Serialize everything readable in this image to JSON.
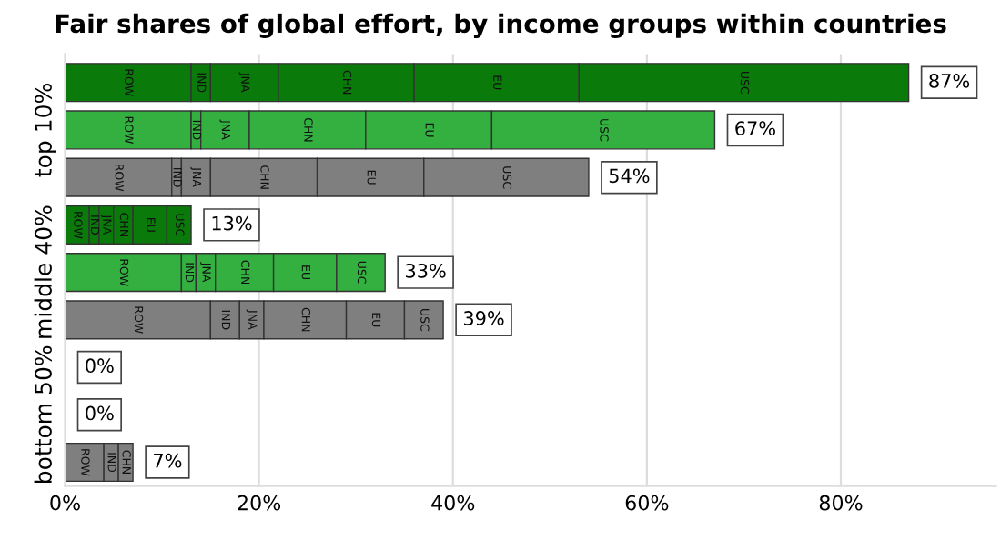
{
  "chart_data": {
    "type": "bar",
    "orientation": "horizontal",
    "stacked": true,
    "title": "Fair shares of global effort, by income groups within countries",
    "categories": [
      null,
      "top 10%",
      null,
      null,
      "middle 40%",
      null,
      null,
      "bottom 50%",
      null
    ],
    "series": [
      {
        "name": "ROW",
        "colors": [
          "#0a7a0a",
          "#33b040",
          "#7f7f7f",
          "#0a7a0a",
          "#33b040",
          "#7f7f7f",
          "#0a7a0a",
          "#33b040",
          "#7f7f7f"
        ],
        "values": [
          13,
          13,
          11,
          2.5,
          12,
          15,
          0,
          0,
          4
        ]
      },
      {
        "name": "IND",
        "colors": [
          "#0a7a0a",
          "#33b040",
          "#7f7f7f",
          "#0a7a0a",
          "#33b040",
          "#7f7f7f",
          "#0a7a0a",
          "#33b040",
          "#7f7f7f"
        ],
        "values": [
          2,
          1,
          1,
          1,
          1.5,
          3,
          0,
          0,
          1.5
        ]
      },
      {
        "name": "JNA",
        "colors": [
          "#0a7a0a",
          "#33b040",
          "#7f7f7f",
          "#0a7a0a",
          "#33b040",
          "#7f7f7f",
          "#0a7a0a",
          "#33b040",
          "#7f7f7f"
        ],
        "values": [
          7,
          5,
          3,
          1.5,
          2,
          2.5,
          0,
          0,
          0
        ]
      },
      {
        "name": "CHN",
        "colors": [
          "#0a7a0a",
          "#33b040",
          "#7f7f7f",
          "#0a7a0a",
          "#33b040",
          "#7f7f7f",
          "#0a7a0a",
          "#33b040",
          "#7f7f7f"
        ],
        "values": [
          14,
          12,
          11,
          2,
          6,
          8.5,
          0,
          0,
          1.5
        ]
      },
      {
        "name": "EU",
        "colors": [
          "#0a7a0a",
          "#33b040",
          "#7f7f7f",
          "#0a7a0a",
          "#33b040",
          "#7f7f7f",
          "#0a7a0a",
          "#33b040",
          "#7f7f7f"
        ],
        "values": [
          17,
          13,
          11,
          3.5,
          6.5,
          6,
          0,
          0,
          0
        ]
      },
      {
        "name": "USC",
        "colors": [
          "#0a7a0a",
          "#33b040",
          "#7f7f7f",
          "#0a7a0a",
          "#33b040",
          "#7f7f7f",
          "#0a7a0a",
          "#33b040",
          "#7f7f7f"
        ],
        "values": [
          34,
          23,
          17,
          2.5,
          5,
          4,
          0,
          0,
          0
        ]
      }
    ],
    "totals": [
      "87%",
      "67%",
      "54%",
      "13%",
      "33%",
      "39%",
      "0%",
      "0%",
      "7%"
    ],
    "xlim": [
      0,
      96
    ],
    "xticks": [
      {
        "value": 0,
        "label": "0%"
      },
      {
        "value": 20,
        "label": "20%"
      },
      {
        "value": 40,
        "label": "40%"
      },
      {
        "value": 60,
        "label": "60%"
      },
      {
        "value": 80,
        "label": "80%"
      }
    ],
    "grid": "x",
    "legend": false
  }
}
